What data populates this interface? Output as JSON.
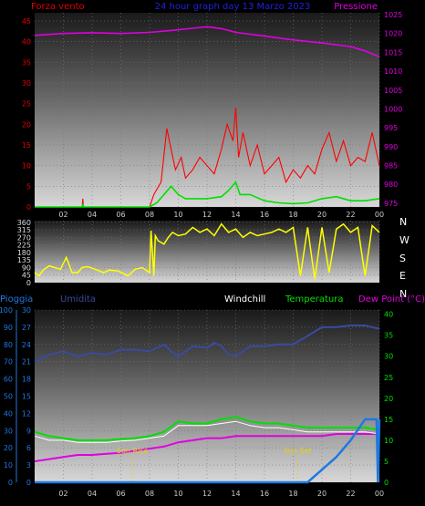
{
  "chart_data": [
    {
      "type": "line",
      "title": "24 hour graph day  13 Marzo 2023",
      "left_axis_title": "Forza vento",
      "right_axis_title": "Pressione",
      "x_ticks": [
        "02",
        "04",
        "06",
        "08",
        "10",
        "12",
        "14",
        "16",
        "18",
        "20",
        "22",
        "00"
      ],
      "y_left_ticks": [
        0,
        5,
        10,
        15,
        20,
        25,
        30,
        35,
        40,
        45
      ],
      "y_left_range": [
        0,
        47
      ],
      "y_right_ticks": [
        975,
        980,
        985,
        990,
        995,
        1000,
        1005,
        1010,
        1015,
        1020,
        1025
      ],
      "y_right_range": [
        974,
        1025.5
      ],
      "x_range": [
        0,
        24
      ],
      "colors": {
        "gust": "#ff0000",
        "speed": "#00e000",
        "pressure": "#e000e0",
        "title": "#2020e0",
        "left_title": "#e00000",
        "right_title": "#e000e0",
        "left_ticks": "#e00000",
        "right_ticks": "#e000e0"
      },
      "series": [
        {
          "key": "pressure",
          "x": [
            0,
            2,
            4,
            6,
            8,
            9.5,
            11,
            12,
            13,
            14,
            16,
            18,
            20,
            22,
            23,
            24
          ],
          "values": [
            1019.5,
            1020,
            1020.2,
            1020,
            1020.3,
            1020.8,
            1021.4,
            1021.8,
            1021.3,
            1020.3,
            1019.3,
            1018.3,
            1017.5,
            1016.5,
            1015.4,
            1013.8
          ]
        },
        {
          "key": "speed",
          "x": [
            0,
            3.3,
            3.35,
            3.4,
            8,
            8.5,
            9,
            9.5,
            10,
            10.5,
            11,
            12,
            13,
            13.5,
            14,
            14.3,
            15,
            16,
            17,
            18,
            19,
            20,
            21,
            22,
            23,
            24
          ],
          "values": [
            0,
            0,
            0.8,
            0,
            0,
            1,
            3,
            5,
            3,
            2,
            2,
            2,
            2.5,
            4,
            6,
            3,
            3,
            1.5,
            1,
            0.8,
            1,
            2,
            2.5,
            1.5,
            1.5,
            2
          ]
        },
        {
          "key": "gust",
          "x": [
            0,
            3.3,
            3.35,
            3.4,
            8,
            8.3,
            8.8,
            9.2,
            9.5,
            9.8,
            10.2,
            10.5,
            11,
            11.5,
            12,
            12.5,
            13,
            13.4,
            13.8,
            14,
            14.2,
            14.5,
            15,
            15.5,
            16,
            16.5,
            17,
            17.5,
            18,
            18.5,
            19,
            19.5,
            20,
            20.5,
            21,
            21.5,
            22,
            22.5,
            23,
            23.5,
            24
          ],
          "values": [
            0,
            0,
            2,
            0,
            0,
            3,
            6,
            19,
            14,
            9,
            12,
            7,
            9,
            12,
            10,
            8,
            14,
            20,
            16,
            24,
            12,
            18,
            10,
            15,
            8,
            10,
            12,
            6,
            9,
            7,
            10,
            8,
            14,
            18,
            11,
            16,
            10,
            12,
            11,
            18,
            10
          ]
        }
      ]
    },
    {
      "type": "line",
      "title": "Direzione vento",
      "right_labels": [
        "N",
        "W",
        "S",
        "E",
        "N"
      ],
      "y_ticks": [
        0,
        45,
        90,
        135,
        180,
        225,
        270,
        315,
        360
      ],
      "y_range": [
        0,
        370
      ],
      "x_range": [
        0,
        24
      ],
      "colors": {
        "direction": "#ffff00"
      },
      "series": [
        {
          "key": "direction",
          "x": [
            0,
            0.3,
            0.6,
            1,
            1.8,
            2.2,
            2.6,
            3,
            3.3,
            3.7,
            4.2,
            4.8,
            5.2,
            5.8,
            6.5,
            7,
            7.5,
            8,
            8.1,
            8.3,
            8.4,
            8.6,
            9,
            9.3,
            9.6,
            10,
            10.5,
            11,
            11.5,
            12,
            12.5,
            13,
            13.5,
            14,
            14.5,
            15,
            15.5,
            16,
            16.5,
            17,
            17.5,
            18,
            18.5,
            19,
            19.5,
            20,
            20.5,
            21,
            21.5,
            22,
            22.5,
            23,
            23.5,
            24
          ],
          "values": [
            60,
            40,
            75,
            100,
            80,
            150,
            60,
            60,
            90,
            95,
            80,
            60,
            75,
            70,
            40,
            80,
            90,
            60,
            310,
            40,
            280,
            250,
            230,
            270,
            300,
            280,
            290,
            330,
            300,
            320,
            280,
            350,
            300,
            320,
            270,
            300,
            280,
            290,
            300,
            320,
            300,
            330,
            40,
            330,
            20,
            330,
            60,
            320,
            350,
            300,
            330,
            40,
            340,
            300
          ]
        }
      ]
    },
    {
      "type": "line",
      "title": "",
      "legend": [
        "Pioggia",
        "Umidita",
        "Windchill",
        "Temperatura",
        "Dew Point (°C)"
      ],
      "y_left_rain_ticks": [
        0,
        10,
        20,
        30,
        40,
        50,
        60,
        70,
        80,
        90,
        100
      ],
      "y_left_hum_ticks": [
        0,
        3,
        6,
        9,
        12,
        15,
        18,
        21,
        24,
        27,
        30
      ],
      "y_right_ticks": [
        0,
        5,
        10,
        15,
        20,
        25,
        30,
        35,
        40
      ],
      "y_right_range": [
        0,
        41
      ],
      "x_ticks": [
        "02",
        "04",
        "06",
        "08",
        "10",
        "12",
        "14",
        "16",
        "18",
        "20",
        "22",
        "00"
      ],
      "x_range": [
        0,
        24
      ],
      "annotations": [
        {
          "label": "Sun Rise",
          "x": 6.8
        },
        {
          "label": "Sun Set",
          "x": 18.3
        }
      ],
      "colors": {
        "rain": "#1e78e0",
        "humidity": "#3a4aa0",
        "windchill": "#ffffff",
        "temperature": "#00e000",
        "dewpoint": "#e000e0",
        "legend_rain": "#1e78e0",
        "legend_hum": "#3a4aa0",
        "legend_wc": "#ffffff",
        "legend_temp": "#00e000",
        "legend_dew": "#e000e0",
        "sun": "#e8d000"
      },
      "series": [
        {
          "key": "humidity",
          "x": [
            0,
            0.5,
            1,
            2,
            3,
            4,
            5,
            6,
            7,
            8,
            9,
            9.5,
            10,
            11,
            12,
            12.5,
            13,
            13.5,
            14,
            15,
            16,
            17,
            18,
            19,
            20,
            21,
            22,
            23,
            24
          ],
          "values": [
            70,
            72,
            74,
            76,
            73,
            75,
            74,
            77,
            77,
            76,
            80,
            76,
            73,
            79,
            78,
            81,
            79,
            74,
            73,
            79,
            79,
            80,
            80,
            85,
            90,
            90,
            91,
            91,
            89
          ]
        },
        {
          "key": "windchill",
          "x": [
            0,
            1,
            2,
            3,
            4,
            5,
            6,
            7,
            8,
            9,
            10,
            11,
            12,
            13,
            14,
            15,
            16,
            17,
            18,
            19,
            20,
            21,
            22,
            23,
            24
          ],
          "values": [
            11,
            10,
            10,
            9.5,
            9.5,
            9.5,
            9.8,
            10,
            10.5,
            11,
            13.5,
            13.5,
            13.5,
            14,
            14.5,
            13.5,
            13,
            13,
            12.5,
            12,
            12,
            12,
            12,
            12,
            11.5
          ]
        },
        {
          "key": "temperature",
          "x": [
            0,
            1,
            2,
            3,
            4,
            5,
            6,
            7,
            8,
            9,
            10,
            11,
            12,
            13,
            14,
            15,
            16,
            17,
            18,
            19,
            20,
            21,
            22,
            23,
            24
          ],
          "values": [
            12,
            11,
            10.5,
            10,
            10,
            10,
            10.3,
            10.5,
            11,
            12,
            14.5,
            14,
            14,
            15,
            15.5,
            14.5,
            14,
            14,
            13.5,
            13,
            13,
            13,
            13,
            13,
            12.5
          ]
        },
        {
          "key": "dewpoint",
          "x": [
            0,
            1,
            2,
            3,
            4,
            5,
            6,
            7,
            8,
            9,
            10,
            11,
            12,
            13,
            14,
            15,
            16,
            17,
            18,
            19,
            20,
            21,
            22,
            23,
            24
          ],
          "values": [
            5,
            5.5,
            6,
            6.5,
            6.5,
            6.8,
            7,
            7.5,
            8,
            8.5,
            9.5,
            10,
            10.5,
            10.5,
            11,
            11,
            11,
            11,
            11,
            11,
            11,
            11.5,
            11.5,
            11.5,
            11.5
          ]
        },
        {
          "key": "rain",
          "x": [
            0,
            18.5,
            19,
            20,
            21,
            22,
            23,
            23.8,
            23.9,
            24
          ],
          "values": [
            0,
            0,
            0,
            3,
            6,
            10,
            15,
            15,
            0,
            15
          ]
        }
      ]
    }
  ]
}
